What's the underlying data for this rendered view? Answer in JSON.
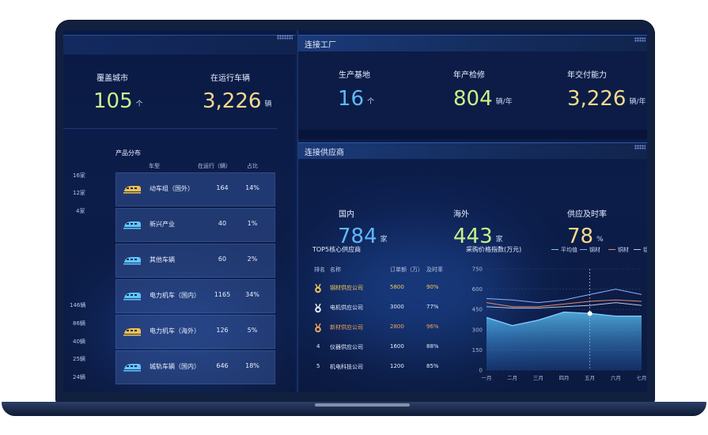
{
  "left_kpis": [
    {
      "label": "覆盖城市",
      "value": "105",
      "unit": "个"
    },
    {
      "label": "在运行车辆",
      "value": "3,226",
      "unit": "辆"
    }
  ],
  "product": {
    "title": "产品分布",
    "headers": {
      "type": "车型",
      "running": "在运行（辆）",
      "share": "占比"
    },
    "side_labels_top": [
      "16家",
      "12家",
      "4家"
    ],
    "side_labels_bottom": [
      "146辆",
      "86辆",
      "40辆",
      "25辆",
      "24辆"
    ],
    "rows": [
      {
        "name": "动车组（国外）",
        "count": "164",
        "pct": "14%",
        "icon": "high-speed-train-icon",
        "icon_color": "#f2c14a"
      },
      {
        "name": "新兴产业",
        "count": "40",
        "pct": "1%",
        "icon": "bullet-train-icon",
        "icon_color": "#5fc6ff"
      },
      {
        "name": "其他车辆",
        "count": "60",
        "pct": "2%",
        "icon": "train-icon",
        "icon_color": "#5fc6ff"
      },
      {
        "name": "电力机车（国内）",
        "count": "1165",
        "pct": "34%",
        "icon": "locomotive-icon",
        "icon_color": "#5fc6ff"
      },
      {
        "name": "电力机车（海外）",
        "count": "126",
        "pct": "5%",
        "icon": "locomotive-front-icon",
        "icon_color": "#f2c14a"
      },
      {
        "name": "城轨车辆（国内）",
        "count": "646",
        "pct": "18%",
        "icon": "metro-train-icon",
        "icon_color": "#5fc6ff"
      }
    ]
  },
  "factory": {
    "title": "连接工厂",
    "kpis": [
      {
        "label": "生产基地",
        "value": "16",
        "unit": "个",
        "color": "#5fb8ff"
      },
      {
        "label": "年产检修",
        "value": "804",
        "unit": "辆/年",
        "color": "#c9f08a"
      },
      {
        "label": "年交付能力",
        "value": "3,226",
        "unit": "辆/年",
        "color": "#f7d98a"
      }
    ]
  },
  "supplier": {
    "title": "连接供应商",
    "kpis": [
      {
        "label": "国内",
        "value": "784",
        "unit": "家",
        "color": "#5fb8ff"
      },
      {
        "label": "海外",
        "value": "443",
        "unit": "家",
        "color": "#c9f08a"
      },
      {
        "label": "供应及时率",
        "value": "78",
        "unit": "%",
        "color": "#f7d98a"
      }
    ]
  },
  "top5": {
    "title": "TOP5核心供应商",
    "headers": {
      "rank": "排名",
      "name": "名称",
      "orders": "订单额（万）",
      "rate": "及时率"
    },
    "rows": [
      {
        "rank": "1",
        "name": "钢材供应公司",
        "orders": "5800",
        "rate": "90%",
        "medal": "gold-medal-icon",
        "color": "#f7c95a"
      },
      {
        "rank": "2",
        "name": "电机供应公司",
        "orders": "3000",
        "rate": "77%",
        "medal": "silver-medal-icon",
        "color": "#e4ebff"
      },
      {
        "rank": "3",
        "name": "新材供应公司",
        "orders": "2800",
        "rate": "96%",
        "medal": "bronze-medal-icon",
        "color": "#f3a35a"
      },
      {
        "rank": "4",
        "name": "仪器供应公司",
        "orders": "1600",
        "rate": "88%",
        "medal": "",
        "color": "#e4ebff"
      },
      {
        "rank": "5",
        "name": "机电科技公司",
        "orders": "1200",
        "rate": "85%",
        "medal": "",
        "color": "#e4ebff"
      }
    ]
  },
  "chart_data": {
    "type": "line",
    "title": "采购价格指数(万元)",
    "categories": [
      "一月",
      "二月",
      "三月",
      "四月",
      "五月",
      "六月",
      "七月"
    ],
    "ylim": [
      0,
      750
    ],
    "yticks": [
      0,
      150,
      300,
      450,
      600,
      750
    ],
    "grid": true,
    "legend_position": "top-right",
    "highlight_index": 4,
    "series": [
      {
        "name": "平均值",
        "values": [
          390,
          330,
          370,
          430,
          420,
          400,
          400
        ],
        "color": "#7ec8ff",
        "area": true
      },
      {
        "name": "钢材",
        "values": [
          530,
          520,
          500,
          520,
          560,
          600,
          560
        ],
        "color": "#8fb0ff"
      },
      {
        "name": "铜材",
        "values": [
          500,
          470,
          470,
          490,
          510,
          520,
          510
        ],
        "color": "#e68a6a"
      },
      {
        "name": "铝材",
        "values": [
          470,
          460,
          460,
          470,
          480,
          500,
          480
        ],
        "color": "#b8c6e8"
      }
    ]
  }
}
